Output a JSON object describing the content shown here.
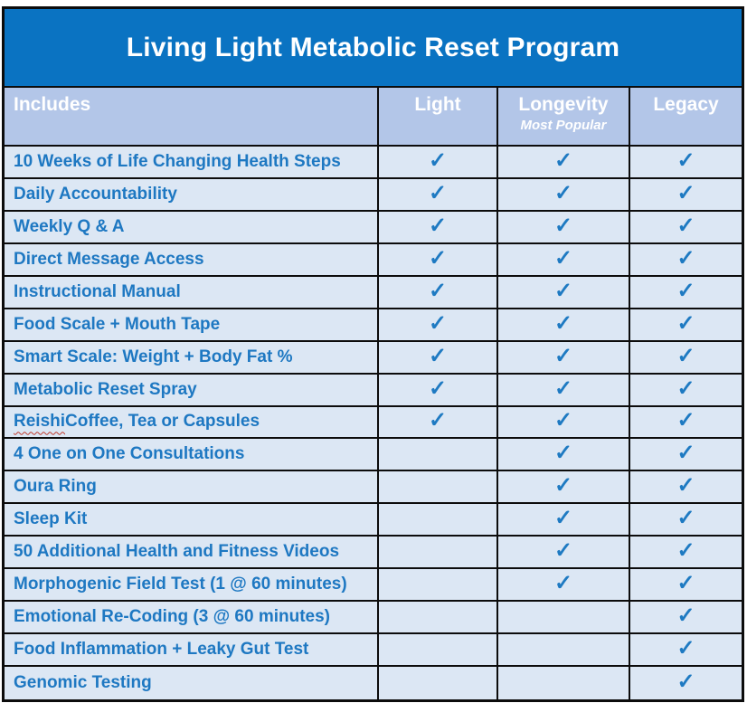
{
  "title": "Living Light Metabolic Reset Program",
  "colors": {
    "title_bg": "#0a73c2",
    "header_bg": "#b3c6e8",
    "row_bg": "#dce7f4",
    "feature_text": "#1e78c2",
    "check": "#1e7ac2",
    "border": "#0c0c0c",
    "header_text": "#ffffff",
    "spellcheck_underline": "#c0392b"
  },
  "check_glyph": "✓",
  "header": {
    "includes_label": "Includes",
    "plans": [
      {
        "name": "Light",
        "subtitle": ""
      },
      {
        "name": "Longevity",
        "subtitle": "Most Popular"
      },
      {
        "name": "Legacy",
        "subtitle": ""
      }
    ]
  },
  "rows": [
    {
      "feature": "10 Weeks of Life Changing Health Steps",
      "checks": [
        true,
        true,
        true
      ]
    },
    {
      "feature": "Daily Accountability",
      "checks": [
        true,
        true,
        true
      ]
    },
    {
      "feature": "Weekly Q & A",
      "checks": [
        true,
        true,
        true
      ]
    },
    {
      "feature": "Direct Message Access",
      "checks": [
        true,
        true,
        true
      ]
    },
    {
      "feature": "Instructional Manual",
      "checks": [
        true,
        true,
        true
      ]
    },
    {
      "feature": "Food Scale + Mouth Tape",
      "checks": [
        true,
        true,
        true
      ]
    },
    {
      "feature": "Smart Scale: Weight + Body Fat %",
      "checks": [
        true,
        true,
        true
      ]
    },
    {
      "feature": "Metabolic Reset Spray",
      "checks": [
        true,
        true,
        true
      ]
    },
    {
      "feature": "Reishi Coffee, Tea or Capsules",
      "checks": [
        true,
        true,
        true
      ],
      "misspelled_word": "Reishi"
    },
    {
      "feature": "4 One on One Consultations",
      "checks": [
        false,
        true,
        true
      ]
    },
    {
      "feature": "Oura Ring",
      "checks": [
        false,
        true,
        true
      ]
    },
    {
      "feature": "Sleep Kit",
      "checks": [
        false,
        true,
        true
      ]
    },
    {
      "feature": "50 Additional Health and Fitness Videos",
      "checks": [
        false,
        true,
        true
      ]
    },
    {
      "feature": "Morphogenic Field Test (1 @ 60 minutes)",
      "checks": [
        false,
        true,
        true
      ]
    },
    {
      "feature": "Emotional Re-Coding (3 @ 60 minutes)",
      "checks": [
        false,
        false,
        true
      ]
    },
    {
      "feature": "Food Inflammation + Leaky Gut Test",
      "checks": [
        false,
        false,
        true
      ]
    },
    {
      "feature": "Genomic Testing",
      "checks": [
        false,
        false,
        true
      ]
    }
  ]
}
